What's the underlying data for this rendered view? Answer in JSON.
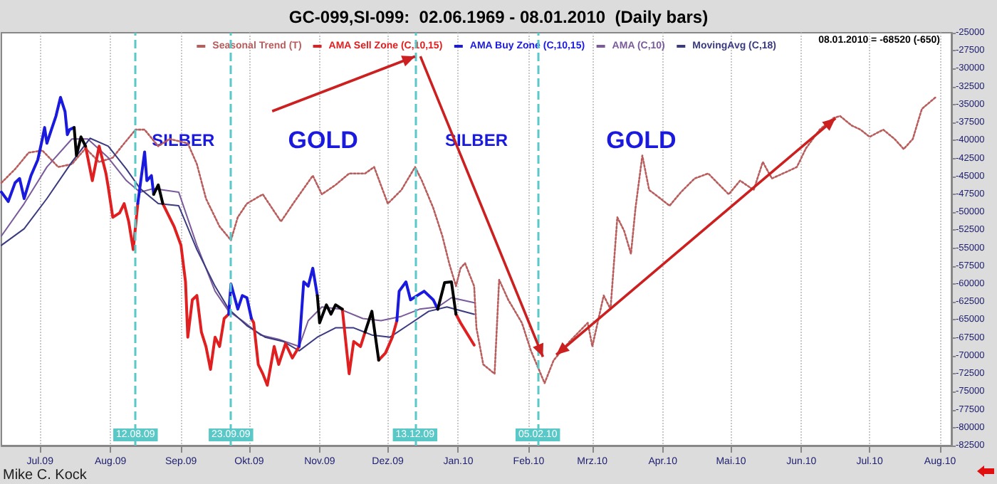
{
  "chart_data": {
    "type": "line",
    "title": "GC-099,SI-099:  02.06.1969 - 08.01.2010  (Daily bars)",
    "x": [
      "2009-06-14",
      "2009-06-17",
      "2009-06-20",
      "2009-06-22",
      "2009-06-24",
      "2009-06-27",
      "2009-06-30",
      "2009-07-02",
      "2009-07-03",
      "2009-07-04",
      "2009-07-06",
      "2009-07-08",
      "2009-07-10",
      "2009-07-12",
      "2009-07-13",
      "2009-07-14",
      "2009-07-16",
      "2009-07-17",
      "2009-07-19",
      "2009-07-21",
      "2009-07-24",
      "2009-07-26",
      "2009-07-27",
      "2009-07-30",
      "2009-07-31",
      "2009-08-02",
      "2009-08-05",
      "2009-08-07",
      "2009-08-09",
      "2009-08-11",
      "2009-08-13",
      "2009-08-16",
      "2009-08-17",
      "2009-08-19",
      "2009-08-20",
      "2009-08-22",
      "2009-08-24",
      "2009-08-29",
      "2009-09-01",
      "2009-09-03",
      "2009-09-04",
      "2009-09-06",
      "2009-09-08",
      "2009-09-10",
      "2009-09-12",
      "2009-09-14",
      "2009-09-16",
      "2009-09-18",
      "2009-09-20",
      "2009-09-22",
      "2009-09-23",
      "2009-09-26",
      "2009-09-28",
      "2009-09-30",
      "2009-10-02",
      "2009-10-03",
      "2009-10-05",
      "2009-10-07",
      "2009-10-09",
      "2009-10-12",
      "2009-10-14",
      "2009-10-17",
      "2009-10-20",
      "2009-10-23",
      "2009-10-25",
      "2009-10-27",
      "2009-10-29",
      "2009-10-31",
      "2009-11-01",
      "2009-11-04",
      "2009-11-06",
      "2009-11-08",
      "2009-11-11",
      "2009-11-14",
      "2009-11-16",
      "2009-11-19",
      "2009-11-21",
      "2009-11-24",
      "2009-11-27",
      "2009-11-30",
      "2009-12-03",
      "2009-12-05",
      "2009-12-06",
      "2009-12-09",
      "2009-12-11",
      "2009-12-14",
      "2009-12-17",
      "2009-12-21",
      "2009-12-23",
      "2009-12-26",
      "2009-12-29",
      "2009-12-31",
      "2010-01-02",
      "2010-01-08"
    ],
    "series": [
      {
        "name": "Seasonal Trend (T)",
        "color": "#b85c5c",
        "line_style": "dotted",
        "x": [
          "2009-06-14",
          "2009-06-20",
          "2009-06-26",
          "2009-07-02",
          "2009-07-09",
          "2009-07-15",
          "2009-07-21",
          "2009-07-27",
          "2009-08-02",
          "2009-08-06",
          "2009-08-12",
          "2009-08-16",
          "2009-08-22",
          "2009-08-27",
          "2009-09-04",
          "2009-09-08",
          "2009-09-12",
          "2009-09-18",
          "2009-09-23",
          "2009-09-26",
          "2009-09-30",
          "2009-10-07",
          "2009-10-11",
          "2009-10-15",
          "2009-10-21",
          "2009-10-29",
          "2009-11-02",
          "2009-11-08",
          "2009-11-14",
          "2009-11-21",
          "2009-11-25",
          "2009-12-01",
          "2009-12-07",
          "2009-12-13",
          "2009-12-16",
          "2009-12-21",
          "2009-12-25",
          "2009-12-28",
          "2009-12-31",
          "2010-01-02",
          "2010-01-04",
          "2010-01-08",
          "2010-01-09",
          "2010-01-12",
          "2010-01-17",
          "2010-01-19",
          "2010-01-23",
          "2010-01-29",
          "2010-02-02",
          "2010-02-08",
          "2010-02-12",
          "2010-02-19",
          "2010-02-27",
          "2010-03-01",
          "2010-03-06",
          "2010-03-09",
          "2010-03-12",
          "2010-03-15",
          "2010-03-18",
          "2010-03-20",
          "2010-03-23",
          "2010-03-26",
          "2010-03-31",
          "2010-04-04",
          "2010-04-09",
          "2010-04-15",
          "2010-04-21",
          "2010-04-25",
          "2010-04-30",
          "2010-05-05",
          "2010-05-11",
          "2010-05-15",
          "2010-05-19",
          "2010-05-26",
          "2010-05-30",
          "2010-06-03",
          "2010-06-09",
          "2010-06-15",
          "2010-06-18",
          "2010-06-23",
          "2010-06-27",
          "2010-07-01",
          "2010-07-07",
          "2010-07-12",
          "2010-07-16",
          "2010-07-20",
          "2010-07-24",
          "2010-07-30"
        ],
        "values": [
          -45900,
          -44000,
          -41700,
          -41400,
          -43700,
          -43300,
          -41100,
          -43000,
          -42400,
          -40800,
          -38500,
          -38500,
          -40800,
          -39800,
          -40400,
          -43300,
          -48100,
          -52000,
          -53900,
          -50700,
          -48800,
          -47500,
          -49400,
          -51300,
          -48500,
          -44900,
          -47500,
          -46200,
          -44600,
          -44600,
          -43700,
          -48800,
          -46900,
          -43700,
          -45600,
          -49400,
          -53300,
          -57100,
          -60300,
          -57800,
          -57100,
          -60300,
          -66100,
          -71200,
          -72500,
          -59400,
          -62200,
          -65400,
          -69300,
          -73800,
          -70600,
          -68000,
          -65400,
          -68700,
          -61600,
          -63500,
          -50700,
          -52600,
          -55800,
          -49400,
          -42100,
          -46900,
          -48100,
          -49100,
          -47200,
          -45300,
          -44600,
          -45900,
          -47500,
          -45600,
          -46900,
          -43000,
          -45300,
          -44300,
          -43700,
          -41100,
          -38500,
          -36900,
          -36600,
          -37900,
          -38500,
          -39500,
          -38500,
          -39800,
          -41200,
          -39800,
          -35600,
          -34000
        ]
      },
      {
        "name": "AMA Sell Zone (C,10,15)",
        "color": "#e02020",
        "values": [
          null,
          null,
          null,
          null,
          null,
          null,
          null,
          null,
          null,
          null,
          null,
          null,
          null,
          null,
          null,
          null,
          null,
          null,
          null,
          -40800,
          -45600,
          -42400,
          -40800,
          -44600,
          -46500,
          -50700,
          -50100,
          -48800,
          -51300,
          -55200,
          -48800,
          null,
          null,
          null,
          null,
          null,
          -48800,
          -52000,
          -54600,
          -59700,
          -67400,
          -62200,
          -61600,
          -66700,
          -68700,
          -71900,
          -67400,
          -68700,
          -64800,
          -64200,
          null,
          null,
          null,
          null,
          -64800,
          -65400,
          -71200,
          -72500,
          -74100,
          -68700,
          -71200,
          -68300,
          -70300,
          -68700,
          null,
          null,
          null,
          null,
          null,
          null,
          null,
          null,
          -63500,
          -72500,
          -68000,
          -68700,
          -66700,
          null,
          -70600,
          -69600,
          -67400,
          -65100,
          null,
          null,
          null,
          null,
          null,
          null,
          null,
          null,
          null,
          -64200,
          -65400,
          -68500
        ]
      },
      {
        "name": "AMA Buy Zone (C,10,15)",
        "color": "#1a1adf",
        "values": [
          -47200,
          -48500,
          -45900,
          -45300,
          -48100,
          -44900,
          -42700,
          -39800,
          -38200,
          -40400,
          -38500,
          -36600,
          -34000,
          -36000,
          -39200,
          -38500,
          -38200,
          null,
          null,
          null,
          null,
          null,
          null,
          null,
          null,
          null,
          null,
          null,
          null,
          null,
          -48800,
          -41600,
          -45600,
          -44900,
          -47500,
          null,
          null,
          null,
          null,
          null,
          null,
          null,
          null,
          null,
          null,
          null,
          null,
          null,
          null,
          -64200,
          -60000,
          -63500,
          -61600,
          -61900,
          -64800,
          null,
          null,
          null,
          null,
          null,
          null,
          null,
          null,
          -68700,
          -59700,
          -60300,
          -57800,
          -61600,
          null,
          null,
          null,
          null,
          null,
          null,
          null,
          null,
          null,
          null,
          null,
          null,
          null,
          -65100,
          -61000,
          -59700,
          -62200,
          -61600,
          -61000,
          -62200,
          -63500,
          null,
          null,
          null,
          null,
          null
        ]
      },
      {
        "color": "#000000",
        "values": [
          null,
          null,
          null,
          null,
          null,
          null,
          null,
          null,
          null,
          null,
          null,
          null,
          null,
          null,
          null,
          null,
          -38200,
          -42100,
          -39500,
          -40800,
          null,
          null,
          null,
          null,
          null,
          null,
          null,
          null,
          null,
          null,
          null,
          null,
          null,
          null,
          -47500,
          -46200,
          -48800,
          null,
          null,
          null,
          null,
          null,
          null,
          null,
          null,
          null,
          null,
          null,
          null,
          null,
          null,
          null,
          null,
          null,
          null,
          null,
          null,
          null,
          null,
          null,
          null,
          null,
          null,
          null,
          null,
          null,
          null,
          -61600,
          -65400,
          -62900,
          -64200,
          -62900,
          -63500,
          null,
          null,
          null,
          -66700,
          -63800,
          -70600,
          null,
          null,
          null,
          null,
          null,
          null,
          null,
          null,
          null,
          -63500,
          -59800,
          -59700,
          -64200,
          null,
          null
        ]
      },
      {
        "name": "AMA (C,10)",
        "color": "#7a5a9a",
        "x": [
          "2009-06-14",
          "2009-06-24",
          "2009-07-04",
          "2009-07-15",
          "2009-07-22",
          "2009-07-31",
          "2009-08-08",
          "2009-08-14",
          "2009-08-20",
          "2009-08-31",
          "2009-09-08",
          "2009-09-16",
          "2009-09-22",
          "2009-09-28",
          "2009-10-06",
          "2009-10-14",
          "2009-10-23",
          "2009-10-27",
          "2009-11-02",
          "2009-11-10",
          "2009-11-20",
          "2009-11-28",
          "2009-12-07",
          "2009-12-15",
          "2009-12-23",
          "2009-12-29",
          "2010-01-08"
        ],
        "values": [
          -53300,
          -48800,
          -43700,
          -39800,
          -39800,
          -42400,
          -45600,
          -47200,
          -46700,
          -47200,
          -54600,
          -61000,
          -63800,
          -65100,
          -67100,
          -67700,
          -68700,
          -65100,
          -63200,
          -63500,
          -64800,
          -65100,
          -64500,
          -63500,
          -63200,
          -61900,
          -62600
        ]
      },
      {
        "name": "MovingAvg (C,18)",
        "color": "#3a3a80",
        "x": [
          "2009-06-14",
          "2009-06-24",
          "2009-07-04",
          "2009-07-15",
          "2009-07-23",
          "2009-07-31",
          "2009-08-08",
          "2009-08-14",
          "2009-08-22",
          "2009-08-31",
          "2009-09-08",
          "2009-09-16",
          "2009-09-22",
          "2009-09-30",
          "2009-10-08",
          "2009-10-16",
          "2009-10-23",
          "2009-10-31",
          "2009-11-08",
          "2009-11-16",
          "2009-11-24",
          "2009-12-02",
          "2009-12-11",
          "2009-12-19",
          "2009-12-27",
          "2010-01-08"
        ],
        "values": [
          -54600,
          -52300,
          -48100,
          -43000,
          -39700,
          -40800,
          -44000,
          -46700,
          -48800,
          -49100,
          -55200,
          -60300,
          -63500,
          -65800,
          -67400,
          -68000,
          -69300,
          -67400,
          -66100,
          -66100,
          -67100,
          -67400,
          -65500,
          -63800,
          -63200,
          -64200
        ]
      }
    ],
    "xlim": [
      "2009-06-14",
      "2010-08-06"
    ],
    "xticks": [
      {
        "value": "2009-07-01",
        "label": "Jul.09"
      },
      {
        "value": "2009-08-01",
        "label": "Aug.09"
      },
      {
        "value": "2009-09-01",
        "label": "Sep.09"
      },
      {
        "value": "2009-10-01",
        "label": "Okt.09"
      },
      {
        "value": "2009-11-01",
        "label": "Nov.09"
      },
      {
        "value": "2009-12-01",
        "label": "Dez.09"
      },
      {
        "value": "2010-01-01",
        "label": "Jan.10"
      },
      {
        "value": "2010-02-01",
        "label": "Feb.10"
      },
      {
        "value": "2010-03-01",
        "label": "Mrz.10"
      },
      {
        "value": "2010-04-01",
        "label": "Apr.10"
      },
      {
        "value": "2010-05-01",
        "label": "Mai.10"
      },
      {
        "value": "2010-06-01",
        "label": "Jun.10"
      },
      {
        "value": "2010-07-01",
        "label": "Jul.10"
      },
      {
        "value": "2010-08-01",
        "label": "Aug.10"
      }
    ],
    "ylim": [
      -82500,
      -25000
    ],
    "yticks": [
      -82500,
      -80000,
      -77500,
      -75000,
      -72500,
      -70000,
      -67500,
      -65000,
      -62500,
      -60000,
      -57500,
      -55000,
      -52500,
      -50000,
      -47500,
      -45000,
      -42500,
      -40000,
      -37500,
      -35000,
      -32500,
      -30000,
      -27500,
      -25000
    ],
    "ref_lines": [
      {
        "axis": "x",
        "value": "2009-08-12",
        "label": "12.08.09",
        "color": "#5bc8c8",
        "line_style": "dashed"
      },
      {
        "axis": "x",
        "value": "2009-09-23",
        "label": "23.09.09",
        "color": "#5bc8c8",
        "line_style": "dashed"
      },
      {
        "axis": "x",
        "value": "2009-12-13",
        "label": "13.12.09",
        "color": "#5bc8c8",
        "line_style": "dashed"
      },
      {
        "axis": "x",
        "value": "2010-02-05",
        "label": "05.02.10",
        "color": "#5bc8c8",
        "line_style": "dashed"
      }
    ],
    "annotations": [
      "SILBER",
      {
        "text": "GOLD",
        "x": "2009-12-13",
        "y": -28300
      },
      "SILBER",
      "GOLD",
      "08.01.2010 = -68520 (-650)",
      "Mike C. Kock"
    ],
    "grid": "x",
    "legend": "top right",
    "marker": "none"
  }
}
